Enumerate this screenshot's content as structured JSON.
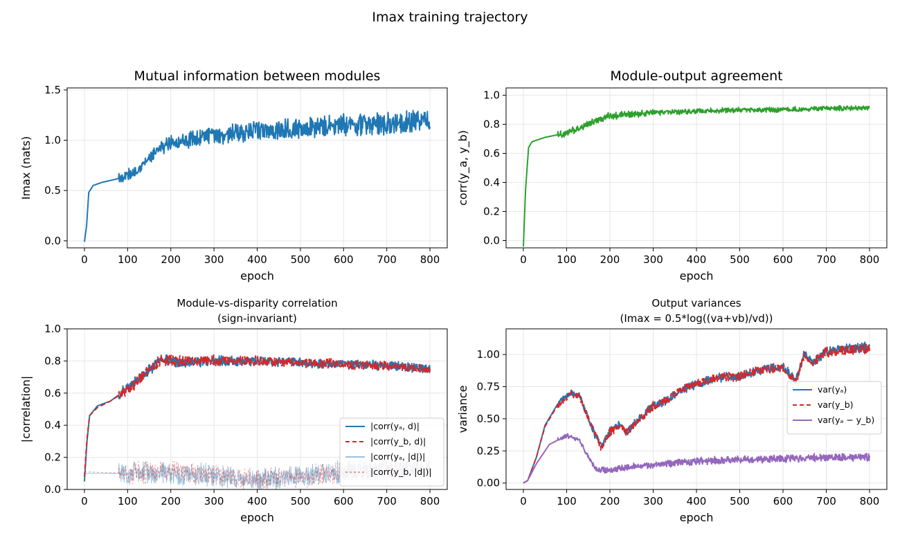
{
  "figure": {
    "suptitle": "Imax training trajectory"
  },
  "chart_data": [
    {
      "type": "line",
      "title": [
        "Mutual information between modules"
      ],
      "xlabel": "epoch",
      "ylabel": "Imax (nats)",
      "xlim": [
        -40,
        840
      ],
      "ylim": [
        -0.07,
        1.52
      ],
      "xticks": [
        0,
        100,
        200,
        300,
        400,
        500,
        600,
        700,
        800
      ],
      "xtick_labels": [
        "0",
        "100",
        "200",
        "300",
        "400",
        "500",
        "600",
        "700",
        "800"
      ],
      "yticks": [
        0.0,
        0.5,
        1.0,
        1.5
      ],
      "ytick_labels": [
        "0.0",
        "0.5",
        "1.0",
        "1.5"
      ],
      "grid": true,
      "legend": null,
      "series": [
        {
          "color": "#1f77b4",
          "dash": "",
          "width": 2,
          "opacity": 1,
          "points": [
            [
              0,
              -0.01
            ],
            [
              5,
              0.15
            ],
            [
              10,
              0.48
            ],
            [
              20,
              0.55
            ],
            [
              40,
              0.58
            ],
            [
              60,
              0.6
            ],
            [
              80,
              0.62
            ],
            [
              100,
              0.65
            ],
            [
              120,
              0.7
            ],
            [
              140,
              0.78
            ],
            [
              160,
              0.85
            ],
            [
              180,
              0.93
            ],
            [
              200,
              0.98
            ],
            [
              230,
              1.0
            ],
            [
              260,
              1.02
            ],
            [
              300,
              1.05
            ],
            [
              350,
              1.07
            ],
            [
              400,
              1.09
            ],
            [
              450,
              1.1
            ],
            [
              500,
              1.12
            ],
            [
              550,
              1.13
            ],
            [
              600,
              1.15
            ],
            [
              650,
              1.16
            ],
            [
              700,
              1.17
            ],
            [
              750,
              1.18
            ],
            [
              800,
              1.2
            ]
          ],
          "noise": [
            0.0,
            0.05,
            0.06,
            0.07,
            0.08,
            0.09,
            0.09,
            0.09,
            0.1,
            0.1,
            0.1
          ]
        }
      ]
    },
    {
      "type": "line",
      "title": [
        "Module-output agreement"
      ],
      "xlabel": "epoch",
      "ylabel": "corr(y_a, y_b)",
      "xlim": [
        -40,
        840
      ],
      "ylim": [
        -0.05,
        1.05
      ],
      "xticks": [
        0,
        100,
        200,
        300,
        400,
        500,
        600,
        700,
        800
      ],
      "xtick_labels": [
        "0",
        "100",
        "200",
        "300",
        "400",
        "500",
        "600",
        "700",
        "800"
      ],
      "yticks": [
        0.0,
        0.2,
        0.4,
        0.6,
        0.8,
        1.0
      ],
      "ytick_labels": [
        "0.0",
        "0.2",
        "0.4",
        "0.6",
        "0.8",
        "1.0"
      ],
      "grid": true,
      "legend": null,
      "series": [
        {
          "color": "#2ca02c",
          "dash": "",
          "width": 2,
          "opacity": 1,
          "points": [
            [
              0,
              -0.04
            ],
            [
              5,
              0.35
            ],
            [
              12,
              0.64
            ],
            [
              20,
              0.68
            ],
            [
              50,
              0.71
            ],
            [
              100,
              0.74
            ],
            [
              150,
              0.8
            ],
            [
              200,
              0.86
            ],
            [
              250,
              0.87
            ],
            [
              300,
              0.88
            ],
            [
              400,
              0.89
            ],
            [
              500,
              0.9
            ],
            [
              600,
              0.9
            ],
            [
              700,
              0.91
            ],
            [
              800,
              0.91
            ]
          ],
          "noise": [
            0.0,
            0.02,
            0.025,
            0.02,
            0.015,
            0.015,
            0.015,
            0.015,
            0.015,
            0.015,
            0.015
          ]
        }
      ]
    },
    {
      "type": "line",
      "title": [
        "Module-vs-disparity correlation",
        "(sign-invariant)"
      ],
      "xlabel": "epoch",
      "ylabel": "|correlation|",
      "xlim": [
        -40,
        840
      ],
      "ylim": [
        0.0,
        1.0
      ],
      "xticks": [
        0,
        100,
        200,
        300,
        400,
        500,
        600,
        700,
        800
      ],
      "xtick_labels": [
        "0",
        "100",
        "200",
        "300",
        "400",
        "500",
        "600",
        "700",
        "800"
      ],
      "yticks": [
        0.0,
        0.2,
        0.4,
        0.6,
        0.8,
        1.0
      ],
      "ytick_labels": [
        "0.0",
        "0.2",
        "0.4",
        "0.6",
        "0.8",
        "1.0"
      ],
      "grid": true,
      "legend": {
        "location": "lower-right",
        "entries": [
          {
            "text": "|corr(yₐ, d)|",
            "color": "#1f77b4",
            "dash": ""
          },
          {
            "text": "|corr(y_b, d)|",
            "color": "#d62728",
            "dash": "6,4"
          },
          {
            "text": "|corr(yₐ, |d|)|",
            "color": "#1f77b4",
            "dash": "",
            "opacity": 0.45
          },
          {
            "text": "|corr(y_b, |d|)|",
            "color": "#d62728",
            "dash": "3,3",
            "opacity": 0.45
          }
        ]
      },
      "series": [
        {
          "name": "|corr(y_a, d)|",
          "color": "#1f77b4",
          "dash": "",
          "width": 2,
          "opacity": 1,
          "points": [
            [
              0,
              0.05
            ],
            [
              6,
              0.3
            ],
            [
              12,
              0.46
            ],
            [
              30,
              0.52
            ],
            [
              60,
              0.55
            ],
            [
              100,
              0.63
            ],
            [
              140,
              0.72
            ],
            [
              180,
              0.81
            ],
            [
              220,
              0.79
            ],
            [
              300,
              0.8
            ],
            [
              400,
              0.8
            ],
            [
              500,
              0.79
            ],
            [
              600,
              0.78
            ],
            [
              700,
              0.77
            ],
            [
              800,
              0.75
            ]
          ],
          "noise": [
            0.0,
            0.03,
            0.03,
            0.03,
            0.025,
            0.025,
            0.025,
            0.025,
            0.025,
            0.025,
            0.025
          ]
        },
        {
          "name": "|corr(y_b, d)|",
          "color": "#d62728",
          "dash": "7,4",
          "width": 2,
          "opacity": 1,
          "points": [
            [
              0,
              0.08
            ],
            [
              6,
              0.32
            ],
            [
              12,
              0.46
            ],
            [
              30,
              0.51
            ],
            [
              60,
              0.55
            ],
            [
              100,
              0.62
            ],
            [
              140,
              0.72
            ],
            [
              180,
              0.81
            ],
            [
              220,
              0.8
            ],
            [
              300,
              0.8
            ],
            [
              400,
              0.8
            ],
            [
              500,
              0.79
            ],
            [
              600,
              0.78
            ],
            [
              700,
              0.77
            ],
            [
              800,
              0.75
            ]
          ],
          "noise": [
            0.0,
            0.03,
            0.03,
            0.03,
            0.025,
            0.025,
            0.025,
            0.025,
            0.025,
            0.025,
            0.025
          ]
        },
        {
          "name": "|corr(y_a, |d|)|",
          "color": "#1f77b4",
          "dash": "",
          "width": 1,
          "opacity": 0.45,
          "points": [
            [
              0,
              0.1
            ],
            [
              100,
              0.1
            ],
            [
              200,
              0.1
            ],
            [
              300,
              0.09
            ],
            [
              400,
              0.06
            ],
            [
              500,
              0.08
            ],
            [
              600,
              0.11
            ],
            [
              700,
              0.13
            ],
            [
              800,
              0.14
            ]
          ],
          "noise": [
            0.0,
            0.06,
            0.06,
            0.06,
            0.06,
            0.06,
            0.06,
            0.06,
            0.06,
            0.06,
            0.06
          ]
        },
        {
          "name": "|corr(y_b, |d|)|",
          "color": "#d62728",
          "dash": "3,3",
          "width": 1,
          "opacity": 0.45,
          "points": [
            [
              0,
              0.11
            ],
            [
              100,
              0.1
            ],
            [
              200,
              0.11
            ],
            [
              300,
              0.09
            ],
            [
              400,
              0.06
            ],
            [
              500,
              0.08
            ],
            [
              600,
              0.11
            ],
            [
              700,
              0.13
            ],
            [
              800,
              0.14
            ]
          ],
          "noise": [
            0.0,
            0.06,
            0.06,
            0.06,
            0.06,
            0.06,
            0.06,
            0.06,
            0.06,
            0.06,
            0.06
          ]
        }
      ]
    },
    {
      "type": "line",
      "title": [
        "Output variances",
        "(Imax = 0.5*log((va+vb)/vd))"
      ],
      "xlabel": "epoch",
      "ylabel": "variance",
      "xlim": [
        -40,
        840
      ],
      "ylim": [
        -0.05,
        1.2
      ],
      "xticks": [
        0,
        100,
        200,
        300,
        400,
        500,
        600,
        700,
        800
      ],
      "xtick_labels": [
        "0",
        "100",
        "200",
        "300",
        "400",
        "500",
        "600",
        "700",
        "800"
      ],
      "yticks": [
        0.0,
        0.25,
        0.5,
        0.75,
        1.0
      ],
      "ytick_labels": [
        "0.00",
        "0.25",
        "0.50",
        "0.75",
        "1.00"
      ],
      "grid": true,
      "legend": {
        "location": "right",
        "entries": [
          {
            "text": "var(yₐ)",
            "color": "#1f77b4",
            "dash": ""
          },
          {
            "text": "var(y_b)",
            "color": "#d62728",
            "dash": "6,4"
          },
          {
            "text": "var(yₐ − y_b)",
            "color": "#9467bd",
            "dash": ""
          }
        ]
      },
      "series": [
        {
          "name": "var(y_a)",
          "color": "#1f77b4",
          "dash": "",
          "width": 2,
          "opacity": 1,
          "points": [
            [
              0,
              0.0
            ],
            [
              10,
              0.02
            ],
            [
              30,
              0.2
            ],
            [
              50,
              0.45
            ],
            [
              80,
              0.62
            ],
            [
              110,
              0.7
            ],
            [
              130,
              0.68
            ],
            [
              150,
              0.5
            ],
            [
              170,
              0.35
            ],
            [
              180,
              0.29
            ],
            [
              200,
              0.4
            ],
            [
              220,
              0.45
            ],
            [
              240,
              0.4
            ],
            [
              260,
              0.47
            ],
            [
              300,
              0.6
            ],
            [
              330,
              0.64
            ],
            [
              360,
              0.72
            ],
            [
              400,
              0.77
            ],
            [
              450,
              0.82
            ],
            [
              500,
              0.83
            ],
            [
              560,
              0.89
            ],
            [
              600,
              0.9
            ],
            [
              630,
              0.8
            ],
            [
              650,
              1.01
            ],
            [
              670,
              0.94
            ],
            [
              700,
              1.03
            ],
            [
              750,
              1.05
            ],
            [
              800,
              1.06
            ]
          ],
          "noise": [
            0.0,
            0.02,
            0.03,
            0.03,
            0.03,
            0.03,
            0.03,
            0.03,
            0.035,
            0.035,
            0.035
          ]
        },
        {
          "name": "var(y_b)",
          "color": "#d62728",
          "dash": "7,4",
          "width": 2,
          "opacity": 1,
          "points": [
            [
              0,
              0.0
            ],
            [
              10,
              0.02
            ],
            [
              30,
              0.2
            ],
            [
              50,
              0.44
            ],
            [
              80,
              0.61
            ],
            [
              110,
              0.69
            ],
            [
              130,
              0.67
            ],
            [
              150,
              0.5
            ],
            [
              170,
              0.35
            ],
            [
              180,
              0.28
            ],
            [
              200,
              0.39
            ],
            [
              220,
              0.45
            ],
            [
              240,
              0.4
            ],
            [
              260,
              0.47
            ],
            [
              300,
              0.6
            ],
            [
              330,
              0.64
            ],
            [
              360,
              0.72
            ],
            [
              400,
              0.77
            ],
            [
              450,
              0.82
            ],
            [
              500,
              0.83
            ],
            [
              560,
              0.89
            ],
            [
              600,
              0.9
            ],
            [
              630,
              0.79
            ],
            [
              650,
              1.0
            ],
            [
              670,
              0.94
            ],
            [
              700,
              1.02
            ],
            [
              750,
              1.04
            ],
            [
              800,
              1.05
            ]
          ],
          "noise": [
            0.0,
            0.02,
            0.03,
            0.03,
            0.03,
            0.03,
            0.03,
            0.03,
            0.035,
            0.035,
            0.035
          ]
        },
        {
          "name": "var(y_a - y_b)",
          "color": "#9467bd",
          "dash": "",
          "width": 2,
          "opacity": 1,
          "points": [
            [
              0,
              0.0
            ],
            [
              10,
              0.02
            ],
            [
              30,
              0.15
            ],
            [
              60,
              0.3
            ],
            [
              100,
              0.37
            ],
            [
              130,
              0.33
            ],
            [
              150,
              0.2
            ],
            [
              170,
              0.1
            ],
            [
              200,
              0.1
            ],
            [
              250,
              0.13
            ],
            [
              300,
              0.14
            ],
            [
              400,
              0.17
            ],
            [
              500,
              0.18
            ],
            [
              600,
              0.19
            ],
            [
              700,
              0.2
            ],
            [
              800,
              0.2
            ]
          ],
          "noise": [
            0.0,
            0.015,
            0.02,
            0.02,
            0.025,
            0.025,
            0.025,
            0.025,
            0.025,
            0.025,
            0.025
          ]
        }
      ]
    }
  ]
}
